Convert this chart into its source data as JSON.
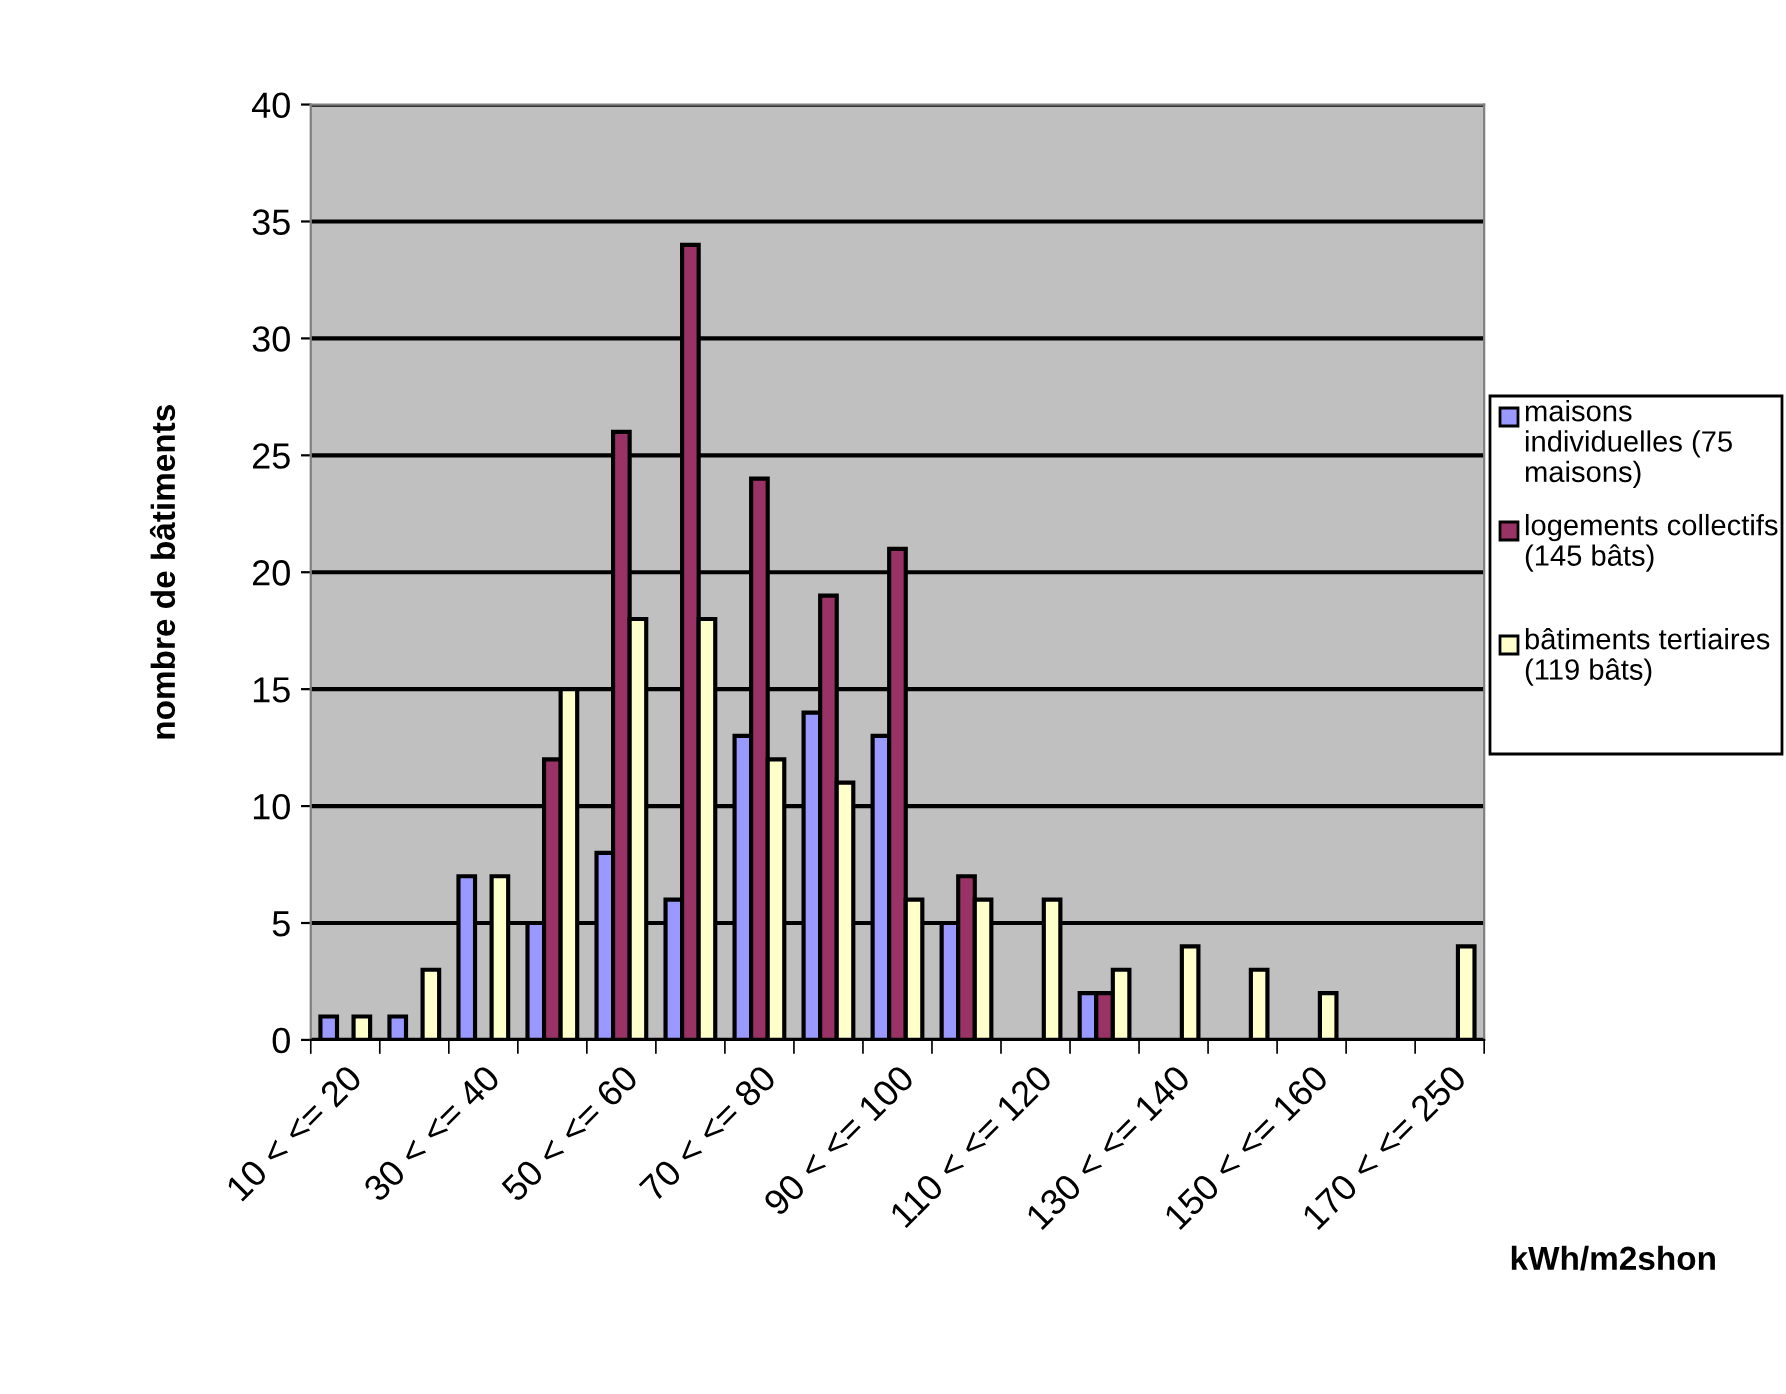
{
  "chart_data": {
    "type": "bar",
    "categories": [
      "10 < <= 20",
      null,
      "30 < <= 40",
      null,
      "50 < <= 60",
      null,
      "70 < <= 80",
      null,
      "90 < <= 100",
      null,
      "110 < <= 120",
      null,
      "130 < <= 140",
      null,
      "150 < <= 160",
      null,
      "170 < <= 250"
    ],
    "series": [
      {
        "name": "maisons individuelles (75 maisons)",
        "color": "#9999ff",
        "values": [
          1,
          1,
          7,
          5,
          8,
          6,
          13,
          14,
          13,
          5,
          null,
          2,
          null,
          null,
          null,
          null,
          null
        ]
      },
      {
        "name": "logements collectifs (145 bâts)",
        "color": "#993366",
        "values": [
          null,
          null,
          null,
          12,
          26,
          34,
          24,
          19,
          21,
          7,
          null,
          2,
          null,
          null,
          null,
          null,
          null
        ]
      },
      {
        "name": "bâtiments tertiaires (119 bâts)",
        "color": "#ffffcc",
        "values": [
          1,
          3,
          7,
          15,
          18,
          18,
          12,
          11,
          6,
          6,
          6,
          3,
          4,
          3,
          2,
          null,
          4
        ]
      }
    ],
    "xlabel": "kWh/m2shon",
    "ylabel": "nombre de bâtiments",
    "ylim": [
      0,
      40
    ],
    "yticks": [
      0,
      5,
      10,
      15,
      20,
      25,
      30,
      35,
      40
    ],
    "grid": "y",
    "legend": "right"
  }
}
